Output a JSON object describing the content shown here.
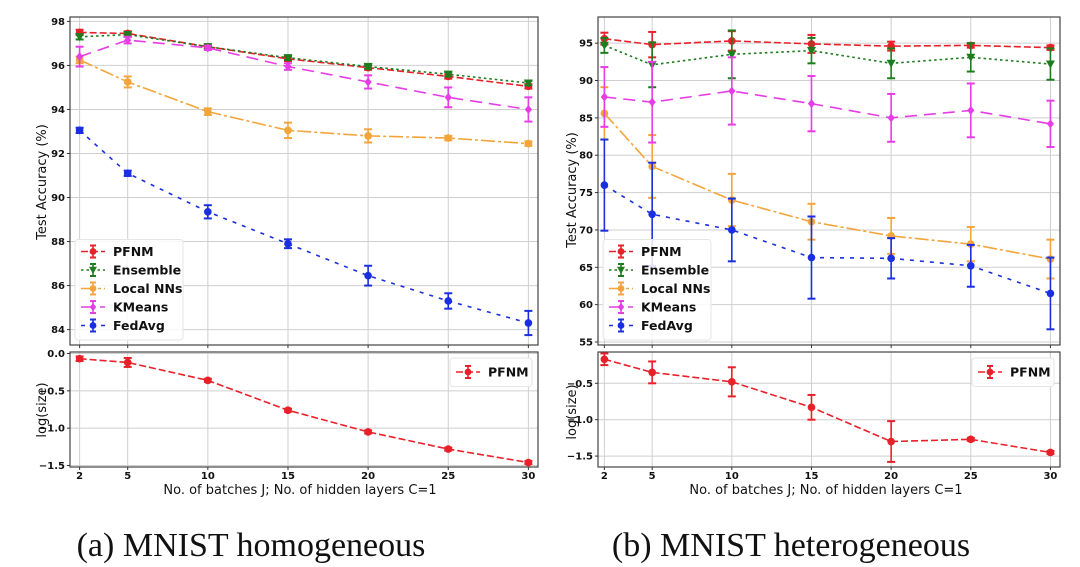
{
  "captions": [
    "(a) MNIST homogeneous",
    "(b) MNIST heterogeneous"
  ],
  "chart_data": [
    {
      "id": "a-top",
      "type": "line",
      "panel": "(a) MNIST homogeneous",
      "title": "",
      "xlabel": "",
      "ylabel": "Test Accuracy (%)",
      "x": [
        2,
        5,
        10,
        15,
        20,
        25,
        30
      ],
      "xticks": [
        "2",
        "5",
        "10",
        "15",
        "20",
        "25",
        "30"
      ],
      "ylim": [
        83.3,
        98.2
      ],
      "yticks": [
        84,
        86,
        88,
        90,
        92,
        94,
        96,
        98
      ],
      "grid": true,
      "legend_position": "lower-left",
      "series": [
        {
          "name": "PFNM",
          "color": "#e8202a",
          "dash": "dashed",
          "marker": "circle",
          "values": [
            97.5,
            97.45,
            96.85,
            96.3,
            95.9,
            95.5,
            95.05
          ],
          "err": [
            0.12,
            0.1,
            0.08,
            0.1,
            0.1,
            0.1,
            0.1
          ]
        },
        {
          "name": "Ensemble",
          "color": "#1e7d1e",
          "dash": "dotted",
          "marker": "triangle-down",
          "values": [
            97.3,
            97.4,
            96.85,
            96.35,
            95.95,
            95.6,
            95.2
          ],
          "err": [
            0.12,
            0.1,
            0.08,
            0.1,
            0.1,
            0.1,
            0.1
          ]
        },
        {
          "name": "Local NNs",
          "color": "#f3a53b",
          "dash": "long-dash-dot",
          "marker": "circle",
          "values": [
            96.25,
            95.25,
            93.9,
            93.05,
            92.8,
            92.7,
            92.45
          ],
          "err": [
            0.15,
            0.25,
            0.15,
            0.35,
            0.3,
            0.1,
            0.1
          ]
        },
        {
          "name": "KMeans",
          "color": "#e63de6",
          "dash": "long-dash",
          "marker": "diamond",
          "values": [
            96.4,
            97.15,
            96.8,
            95.95,
            95.25,
            94.55,
            94.0
          ],
          "err": [
            0.45,
            0.15,
            0.1,
            0.15,
            0.3,
            0.45,
            0.55
          ]
        },
        {
          "name": "FedAvg",
          "color": "#1a2fe0",
          "dash": "short-dash",
          "marker": "circle",
          "values": [
            93.05,
            91.1,
            89.35,
            87.9,
            86.45,
            85.3,
            84.3
          ],
          "err": [
            0.12,
            0.12,
            0.3,
            0.2,
            0.45,
            0.35,
            0.55
          ]
        }
      ]
    },
    {
      "id": "a-bottom",
      "type": "line",
      "panel": "(a) MNIST homogeneous",
      "xlabel": "No. of batches J; No. of hidden layers C=1",
      "ylabel": "log(size)",
      "x": [
        2,
        5,
        10,
        15,
        20,
        25,
        30
      ],
      "xticks": [
        "2",
        "5",
        "10",
        "15",
        "20",
        "25",
        "30"
      ],
      "ylim": [
        -1.52,
        0.02
      ],
      "yticks": [
        0.0,
        -0.5,
        -1.0,
        -1.5
      ],
      "yticklabels": [
        "0.0",
        "−0.5",
        "−1.0",
        "−1.5"
      ],
      "grid": true,
      "legend_position": "upper-right",
      "series": [
        {
          "name": "PFNM",
          "color": "#e8202a",
          "dash": "dashed",
          "marker": "circle",
          "values": [
            -0.07,
            -0.12,
            -0.36,
            -0.76,
            -1.05,
            -1.28,
            -1.46
          ],
          "err": [
            0.03,
            0.06,
            0.02,
            0.02,
            0.02,
            0.02,
            0.02
          ]
        }
      ]
    },
    {
      "id": "b-top",
      "type": "line",
      "panel": "(b) MNIST heterogeneous",
      "title": "",
      "xlabel": "",
      "ylabel": "Test Accuracy (%)",
      "x": [
        2,
        5,
        10,
        15,
        20,
        25,
        30
      ],
      "xticks": [
        "2",
        "5",
        "10",
        "15",
        "20",
        "25",
        "30"
      ],
      "ylim": [
        54.6,
        98.5
      ],
      "yticks": [
        55,
        60,
        65,
        70,
        75,
        80,
        85,
        90,
        95
      ],
      "grid": true,
      "legend_position": "lower-left",
      "series": [
        {
          "name": "PFNM",
          "color": "#e8202a",
          "dash": "dashed",
          "marker": "circle",
          "values": [
            95.6,
            94.8,
            95.3,
            94.9,
            94.6,
            94.7,
            94.4
          ],
          "err": [
            0.8,
            1.7,
            1.3,
            1.2,
            0.6,
            0.3,
            0.3
          ]
        },
        {
          "name": "Ensemble",
          "color": "#1e7d1e",
          "dash": "dotted",
          "marker": "triangle-down",
          "values": [
            94.7,
            92.1,
            93.5,
            94.0,
            92.3,
            93.1,
            92.2
          ],
          "err": [
            1.0,
            3.0,
            3.2,
            1.7,
            2.0,
            1.9,
            2.1
          ]
        },
        {
          "name": "Local NNs",
          "color": "#f3a53b",
          "dash": "long-dash-dot",
          "marker": "circle",
          "values": [
            85.6,
            78.5,
            74.0,
            71.1,
            69.2,
            68.1,
            66.1
          ],
          "err": [
            3.5,
            4.2,
            3.5,
            2.4,
            2.4,
            2.3,
            2.6
          ]
        },
        {
          "name": "KMeans",
          "color": "#e63de6",
          "dash": "long-dash",
          "marker": "diamond",
          "values": [
            87.8,
            87.1,
            88.6,
            86.9,
            85.0,
            86.0,
            84.2
          ],
          "err": [
            4.0,
            5.4,
            4.5,
            3.7,
            3.2,
            3.6,
            3.1
          ]
        },
        {
          "name": "FedAvg",
          "color": "#1a2fe0",
          "dash": "short-dash",
          "marker": "circle",
          "values": [
            76.0,
            72.1,
            70.0,
            66.3,
            66.2,
            65.2,
            61.5
          ],
          "err": [
            6.1,
            6.9,
            4.2,
            5.5,
            2.7,
            2.8,
            4.8
          ]
        }
      ]
    },
    {
      "id": "b-bottom",
      "type": "line",
      "panel": "(b) MNIST heterogeneous",
      "xlabel": "No. of batches J; No. of hidden layers C=1",
      "ylabel": "log(size)",
      "x": [
        2,
        5,
        10,
        15,
        20,
        25,
        30
      ],
      "xticks": [
        "2",
        "5",
        "10",
        "15",
        "20",
        "25",
        "30"
      ],
      "ylim": [
        -1.65,
        -0.07
      ],
      "yticks": [
        -0.5,
        -1.0,
        -1.5
      ],
      "yticklabels": [
        "−0.5",
        "−1.0",
        "−1.5"
      ],
      "grid": true,
      "legend_position": "upper-right",
      "series": [
        {
          "name": "PFNM",
          "color": "#e8202a",
          "dash": "dashed",
          "marker": "circle",
          "values": [
            -0.17,
            -0.35,
            -0.48,
            -0.83,
            -1.3,
            -1.27,
            -1.45
          ],
          "err": [
            0.08,
            0.15,
            0.2,
            0.17,
            0.28,
            0.02,
            0.02
          ]
        }
      ]
    }
  ]
}
